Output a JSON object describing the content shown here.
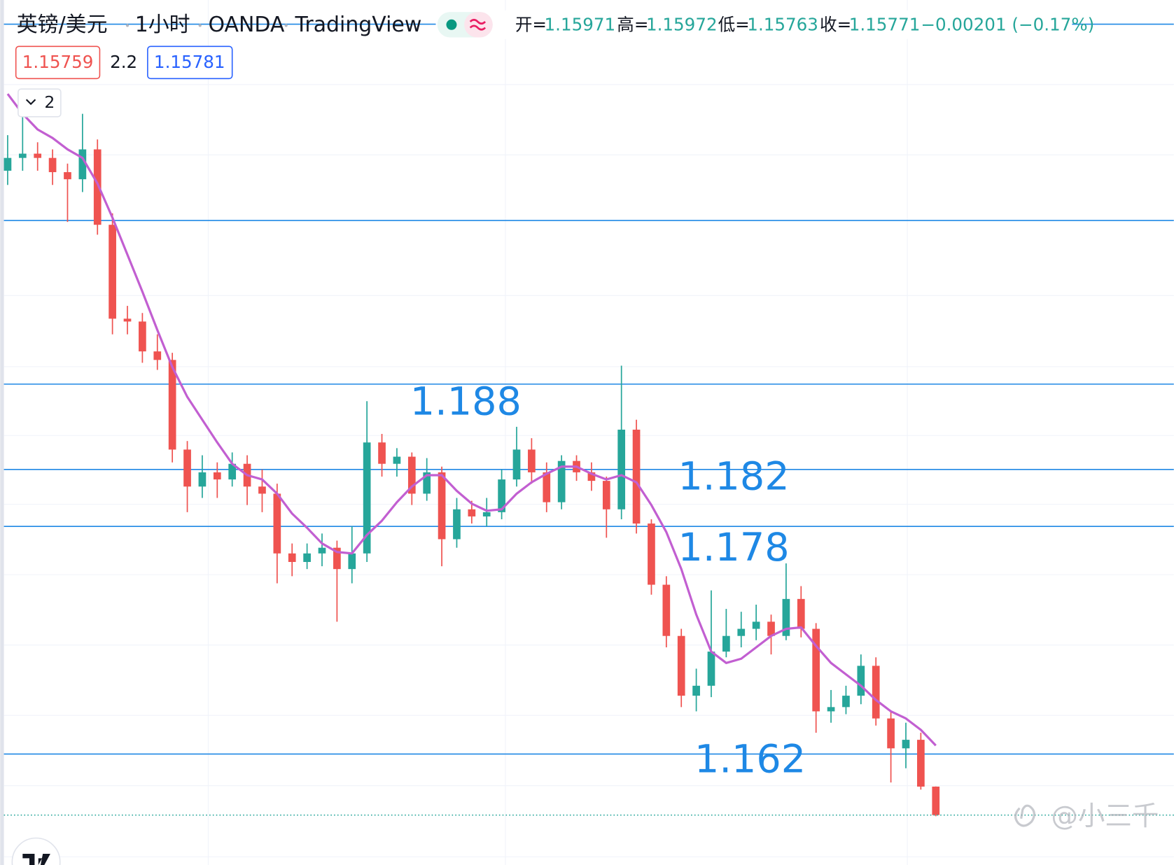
{
  "chart_data": {
    "type": "candlestick",
    "symbol": "英镑/美元",
    "interval": "1小时",
    "broker": "OANDA",
    "platform": "TradingView",
    "ohlc_labels": [
      "开=",
      "高=",
      "低=",
      "收="
    ],
    "change": "−0.00201 (−0.17%)",
    "bid": "1.15759",
    "spread": "2.2",
    "ask": "1.15781",
    "indicator_count": 2,
    "watermark": "@小三千",
    "up_color": "#26a69a",
    "down_color": "#ef5350",
    "ylim": [
      1.1542,
      1.215
    ],
    "levels": [
      1.2133,
      1.1995,
      1.188,
      1.182,
      1.178,
      1.162
    ],
    "level_color": "#1e88e5",
    "ohlc": [
      [
        1.203,
        1.2055,
        1.202,
        1.2039
      ],
      [
        1.2039,
        1.2068,
        1.203,
        1.2042
      ],
      [
        1.2042,
        1.205,
        1.203,
        1.2039
      ],
      [
        1.2039,
        1.2045,
        1.202,
        1.2029
      ],
      [
        1.2029,
        1.2035,
        1.1994,
        1.2024
      ],
      [
        1.2024,
        1.207,
        1.2015,
        1.2045
      ],
      [
        1.2045,
        1.2052,
        1.1985,
        1.1992
      ],
      [
        1.1992,
        1.2,
        1.1915,
        1.1926
      ],
      [
        1.1926,
        1.1935,
        1.1915,
        1.1924
      ],
      [
        1.1924,
        1.193,
        1.1895,
        1.1903
      ],
      [
        1.1903,
        1.1915,
        1.189,
        1.1897
      ],
      [
        1.1897,
        1.1902,
        1.1825,
        1.1834
      ],
      [
        1.1834,
        1.184,
        1.179,
        1.1808
      ],
      [
        1.1808,
        1.183,
        1.18,
        1.1818
      ],
      [
        1.1818,
        1.1825,
        1.18,
        1.1813
      ],
      [
        1.1813,
        1.1832,
        1.1808,
        1.1824
      ],
      [
        1.1824,
        1.183,
        1.1795,
        1.1808
      ],
      [
        1.1808,
        1.182,
        1.179,
        1.1803
      ],
      [
        1.1803,
        1.181,
        1.174,
        1.1761
      ],
      [
        1.1761,
        1.1768,
        1.1745,
        1.1755
      ],
      [
        1.1755,
        1.1768,
        1.175,
        1.1761
      ],
      [
        1.1761,
        1.1775,
        1.1752,
        1.1765
      ],
      [
        1.1765,
        1.177,
        1.1713,
        1.175
      ],
      [
        1.175,
        1.178,
        1.174,
        1.1761
      ],
      [
        1.1761,
        1.1868,
        1.1755,
        1.1839
      ],
      [
        1.1839,
        1.1845,
        1.1815,
        1.1824
      ],
      [
        1.1824,
        1.1835,
        1.1815,
        1.1829
      ],
      [
        1.1829,
        1.1832,
        1.1795,
        1.1803
      ],
      [
        1.1803,
        1.1828,
        1.1798,
        1.1818
      ],
      [
        1.1818,
        1.1822,
        1.1752,
        1.1771
      ],
      [
        1.1771,
        1.18,
        1.1765,
        1.1792
      ],
      [
        1.1792,
        1.1798,
        1.1782,
        1.1787
      ],
      [
        1.1787,
        1.18,
        1.178,
        1.179
      ],
      [
        1.179,
        1.182,
        1.1785,
        1.1813
      ],
      [
        1.1813,
        1.185,
        1.1808,
        1.1834
      ],
      [
        1.1834,
        1.1842,
        1.181,
        1.1818
      ],
      [
        1.1818,
        1.1825,
        1.179,
        1.1797
      ],
      [
        1.1797,
        1.183,
        1.1792,
        1.1826
      ],
      [
        1.1826,
        1.183,
        1.1812,
        1.1818
      ],
      [
        1.1818,
        1.1825,
        1.1805,
        1.1812
      ],
      [
        1.1812,
        1.1815,
        1.1772,
        1.1792
      ],
      [
        1.1792,
        1.1893,
        1.1785,
        1.1848
      ],
      [
        1.1848,
        1.1855,
        1.1775,
        1.1782
      ],
      [
        1.1782,
        1.1785,
        1.1732,
        1.1739
      ],
      [
        1.1739,
        1.1745,
        1.1695,
        1.1703
      ],
      [
        1.1703,
        1.1708,
        1.1653,
        1.1661
      ],
      [
        1.1661,
        1.168,
        1.165,
        1.1668
      ],
      [
        1.1668,
        1.1735,
        1.166,
        1.1692
      ],
      [
        1.1692,
        1.1722,
        1.1688,
        1.1703
      ],
      [
        1.1703,
        1.172,
        1.1695,
        1.1708
      ],
      [
        1.1708,
        1.1725,
        1.17,
        1.1713
      ],
      [
        1.1713,
        1.1718,
        1.169,
        1.1703
      ],
      [
        1.1703,
        1.1754,
        1.17,
        1.1729
      ],
      [
        1.1729,
        1.1738,
        1.1702,
        1.1708
      ],
      [
        1.1708,
        1.1712,
        1.1635,
        1.165
      ],
      [
        1.165,
        1.1665,
        1.1642,
        1.1653
      ],
      [
        1.1653,
        1.1668,
        1.1648,
        1.1661
      ],
      [
        1.1661,
        1.169,
        1.1655,
        1.1682
      ],
      [
        1.1682,
        1.1688,
        1.164,
        1.1645
      ],
      [
        1.1645,
        1.165,
        1.16,
        1.1624
      ],
      [
        1.1624,
        1.1642,
        1.161,
        1.163
      ],
      [
        1.163,
        1.1635,
        1.1595,
        1.15971
      ],
      [
        1.15971,
        1.15972,
        1.15763,
        1.15771
      ]
    ],
    "ma": {
      "color": "#c25fd1",
      "values": [
        1.2084,
        1.207,
        1.2059,
        1.2053,
        1.2045,
        1.2039,
        1.2021,
        1.1997,
        1.1971,
        1.1945,
        1.1918,
        1.1892,
        1.1871,
        1.1855,
        1.1839,
        1.1824,
        1.1816,
        1.1813,
        1.1803,
        1.1789,
        1.1779,
        1.1768,
        1.1762,
        1.1761,
        1.1774,
        1.1784,
        1.1797,
        1.1808,
        1.1816,
        1.1816,
        1.1805,
        1.1796,
        1.1791,
        1.1792,
        1.1803,
        1.1811,
        1.1817,
        1.1822,
        1.1822,
        1.1817,
        1.1813,
        1.1816,
        1.1811,
        1.1795,
        1.1776,
        1.175,
        1.1718,
        1.1692,
        1.1684,
        1.1687,
        1.1695,
        1.1703,
        1.1708,
        1.1709,
        1.1696,
        1.1684,
        1.1676,
        1.1668,
        1.1658,
        1.165,
        1.1645,
        1.1637,
        1.1626
      ]
    }
  }
}
